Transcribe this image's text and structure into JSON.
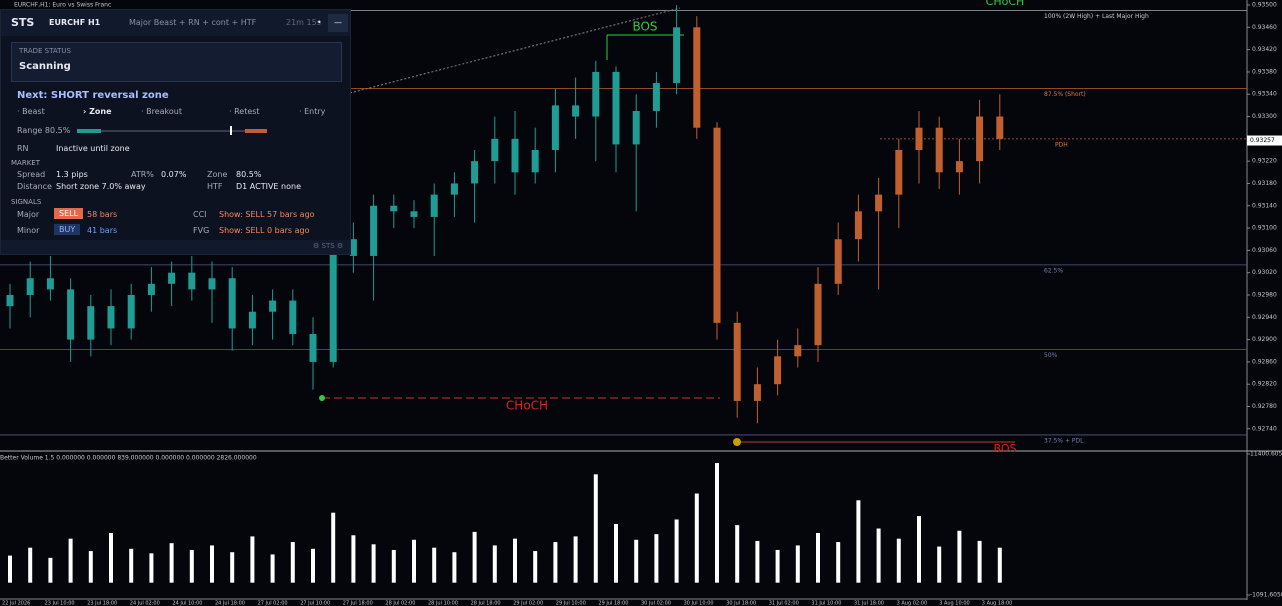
{
  "window": {
    "title": "EURCHF,H1: Euro vs Swiss Franc"
  },
  "panel": {
    "logo": "STS",
    "symbol": "EURCHF H1",
    "mode": "Major Beast + RN + cont + HTF",
    "timer": "21m 15s",
    "dot": "•",
    "minimize": "—",
    "status_title": "TRADE STATUS",
    "status": "Scanning",
    "next": "Next: SHORT reversal zone",
    "steps": [
      "· Beast",
      "› Zone",
      "· Breakout",
      "· Retest",
      "· Entry"
    ],
    "range": "Range 80.5%",
    "rn_label": "RN",
    "rn_value": "Inactive until zone",
    "market": "MARKET",
    "market_rows": [
      [
        "Spread",
        "1.3 pips",
        "ATR%",
        "0.07%",
        "Zone",
        "80.5%"
      ],
      [
        "Distance",
        "Short zone 7.0% away",
        "HTF",
        "D1 ACTIVE none"
      ]
    ],
    "signals": "SIGNALS",
    "signal_rows": [
      [
        "Major",
        "SELL",
        "58 bars",
        "CCI",
        "Show: SELL 57 bars ago"
      ],
      [
        "Minor",
        "BUY",
        "41 bars",
        "FVG",
        "Show: SELL 0 bars ago"
      ]
    ],
    "footer": "⚙ STS ⚙"
  },
  "chart": {
    "ylim": [
      0.92702,
      0.93509
    ],
    "price_ticks": [
      {
        "value": 0.935,
        "label": "0.93500"
      },
      {
        "value": 0.9346,
        "label": "0.93460"
      },
      {
        "value": 0.9342,
        "label": "0.93420"
      },
      {
        "value": 0.9338,
        "label": "0.93380"
      },
      {
        "value": 0.9334,
        "label": "0.93340"
      },
      {
        "value": 0.933,
        "label": "0.93300"
      },
      {
        "value": 0.9326,
        "label": "0.93260"
      },
      {
        "value": 0.9322,
        "label": "0.93220"
      },
      {
        "value": 0.9318,
        "label": "0.93180"
      },
      {
        "value": 0.9314,
        "label": "0.93140"
      },
      {
        "value": 0.931,
        "label": "0.93100"
      },
      {
        "value": 0.9306,
        "label": "0.93060"
      },
      {
        "value": 0.9302,
        "label": "0.93020"
      },
      {
        "value": 0.9298,
        "label": "0.92980"
      },
      {
        "value": 0.9294,
        "label": "0.92940"
      },
      {
        "value": 0.929,
        "label": "0.92900"
      },
      {
        "value": 0.9286,
        "label": "0.92860"
      },
      {
        "value": 0.9282,
        "label": "0.92820"
      },
      {
        "value": 0.9278,
        "label": "0.92780"
      },
      {
        "value": 0.9274,
        "label": "0.92740"
      }
    ],
    "last_price": {
      "value": 0.93257,
      "label": "0.93257"
    },
    "levels": [
      {
        "value": 0.9349,
        "label": "100% (2W High) + Last Major High"
      },
      {
        "value": 0.9335,
        "label": "87.5% (Short)"
      },
      {
        "value": 0.9326,
        "label": "PDH"
      },
      {
        "value": 0.93034,
        "label": "62.5%"
      },
      {
        "value": 0.92882,
        "label": "50%"
      },
      {
        "value": 0.92729,
        "label": "37.5% + PDL"
      }
    ],
    "markers": [
      "BOS",
      "CHoCH",
      "CHoCH",
      "BOS"
    ],
    "bull_candles": {
      "color": "#1f9c94",
      "ohlc": [
        [
          0.9296,
          0.93,
          0.9292,
          0.9298
        ],
        [
          0.9298,
          0.9304,
          0.9294,
          0.9301
        ],
        [
          0.9301,
          0.9305,
          0.9297,
          0.9299
        ],
        [
          0.9299,
          0.9301,
          0.9286,
          0.929
        ],
        [
          0.929,
          0.9298,
          0.9287,
          0.9296
        ],
        [
          0.9296,
          0.9299,
          0.9289,
          0.9292
        ],
        [
          0.9292,
          0.93,
          0.929,
          0.9298
        ],
        [
          0.9298,
          0.9303,
          0.9295,
          0.93
        ],
        [
          0.93,
          0.9304,
          0.9296,
          0.9302
        ],
        [
          0.9302,
          0.9305,
          0.9297,
          0.9299
        ],
        [
          0.9299,
          0.9304,
          0.9293,
          0.9301
        ],
        [
          0.9301,
          0.9303,
          0.9288,
          0.9292
        ],
        [
          0.9292,
          0.9298,
          0.9289,
          0.9295
        ],
        [
          0.9295,
          0.9299,
          0.929,
          0.9297
        ],
        [
          0.9297,
          0.9299,
          0.9289,
          0.9291
        ],
        [
          0.9291,
          0.9294,
          0.9281,
          0.9286
        ],
        [
          0.9286,
          0.931,
          0.9285,
          0.9308
        ],
        [
          0.9308,
          0.9311,
          0.9302,
          0.9305
        ],
        [
          0.9305,
          0.9316,
          0.9297,
          0.9314
        ],
        [
          0.9314,
          0.9316,
          0.931,
          0.9313
        ],
        [
          0.9313,
          0.9315,
          0.931,
          0.9312
        ],
        [
          0.9312,
          0.9318,
          0.9305,
          0.9316
        ],
        [
          0.9316,
          0.932,
          0.9312,
          0.9318
        ],
        [
          0.9318,
          0.9324,
          0.9311,
          0.9322
        ],
        [
          0.9322,
          0.933,
          0.9318,
          0.9326
        ],
        [
          0.9326,
          0.9331,
          0.9316,
          0.932
        ],
        [
          0.932,
          0.9328,
          0.9318,
          0.9324
        ],
        [
          0.9324,
          0.9335,
          0.932,
          0.9332
        ],
        [
          0.9332,
          0.9337,
          0.9326,
          0.933
        ],
        [
          0.933,
          0.934,
          0.9322,
          0.9338
        ],
        [
          0.9338,
          0.9339,
          0.932,
          0.9325
        ],
        [
          0.9325,
          0.9334,
          0.9313,
          0.9331
        ],
        [
          0.9331,
          0.9338,
          0.9328,
          0.9336
        ],
        [
          0.9336,
          0.935,
          0.9334,
          0.9346
        ]
      ]
    },
    "bear_candles": {
      "color": "#c0602e",
      "ohlc": [
        [
          0.9346,
          0.9348,
          0.9326,
          0.9328
        ],
        [
          0.9328,
          0.9329,
          0.929,
          0.9293
        ],
        [
          0.9293,
          0.9295,
          0.9276,
          0.9279
        ],
        [
          0.9279,
          0.9285,
          0.9275,
          0.9282
        ],
        [
          0.9282,
          0.929,
          0.928,
          0.9287
        ],
        [
          0.9287,
          0.9292,
          0.9285,
          0.9289
        ],
        [
          0.9289,
          0.9303,
          0.9286,
          0.93
        ],
        [
          0.93,
          0.9311,
          0.9298,
          0.9308
        ],
        [
          0.9308,
          0.9316,
          0.9304,
          0.9313
        ],
        [
          0.9313,
          0.9319,
          0.9299,
          0.9316
        ],
        [
          0.9316,
          0.9326,
          0.931,
          0.9324
        ],
        [
          0.9324,
          0.9331,
          0.9318,
          0.9328
        ],
        [
          0.9328,
          0.933,
          0.9317,
          0.932
        ],
        [
          0.932,
          0.9326,
          0.9316,
          0.9322
        ],
        [
          0.9322,
          0.9333,
          0.9318,
          0.933
        ],
        [
          0.933,
          0.9334,
          0.9324,
          0.9326
        ]
      ]
    }
  },
  "volume": {
    "header": "Better Volume 1.5 0.000000 0.000000 839.000000 0.000000 0.000000 2826.000000",
    "ylim": [
      -1091.605,
      11400.605
    ],
    "yticks": [
      {
        "value": 11400.605,
        "label": "11400.6050"
      },
      {
        "value": -1091.605,
        "label": "-1091.6050"
      }
    ],
    "color": "#ffffff",
    "values": [
      2400,
      3100,
      2200,
      3900,
      2800,
      4400,
      3000,
      2600,
      3500,
      2900,
      3300,
      2700,
      4100,
      2500,
      3600,
      3000,
      6200,
      4200,
      3400,
      2900,
      3800,
      3100,
      2700,
      4500,
      3300,
      3900,
      2800,
      3600,
      4100,
      9600,
      5200,
      3800,
      4300,
      5600,
      7900,
      10600,
      5100,
      3700,
      2900,
      3300,
      4400,
      3600,
      7300,
      4800,
      3900,
      5900,
      3200,
      4600,
      3700,
      3100
    ]
  },
  "time_axis": [
    "22 Jul 2026",
    "23 Jul 10:00",
    "23 Jul 18:00",
    "24 Jul 02:00",
    "24 Jul 10:00",
    "24 Jul 18:00",
    "27 Jul 02:00",
    "27 Jul 10:00",
    "27 Jul 18:00",
    "28 Jul 02:00",
    "28 Jul 10:00",
    "28 Jul 18:00",
    "29 Jul 02:00",
    "29 Jul 10:00",
    "29 Jul 18:00",
    "30 Jul 02:00",
    "30 Jul 10:00",
    "30 Jul 18:00",
    "31 Jul 02:00",
    "31 Jul 10:00",
    "31 Jul 18:00",
    "3 Aug 02:00",
    "3 Aug 10:00",
    "3 Aug 18:00"
  ]
}
